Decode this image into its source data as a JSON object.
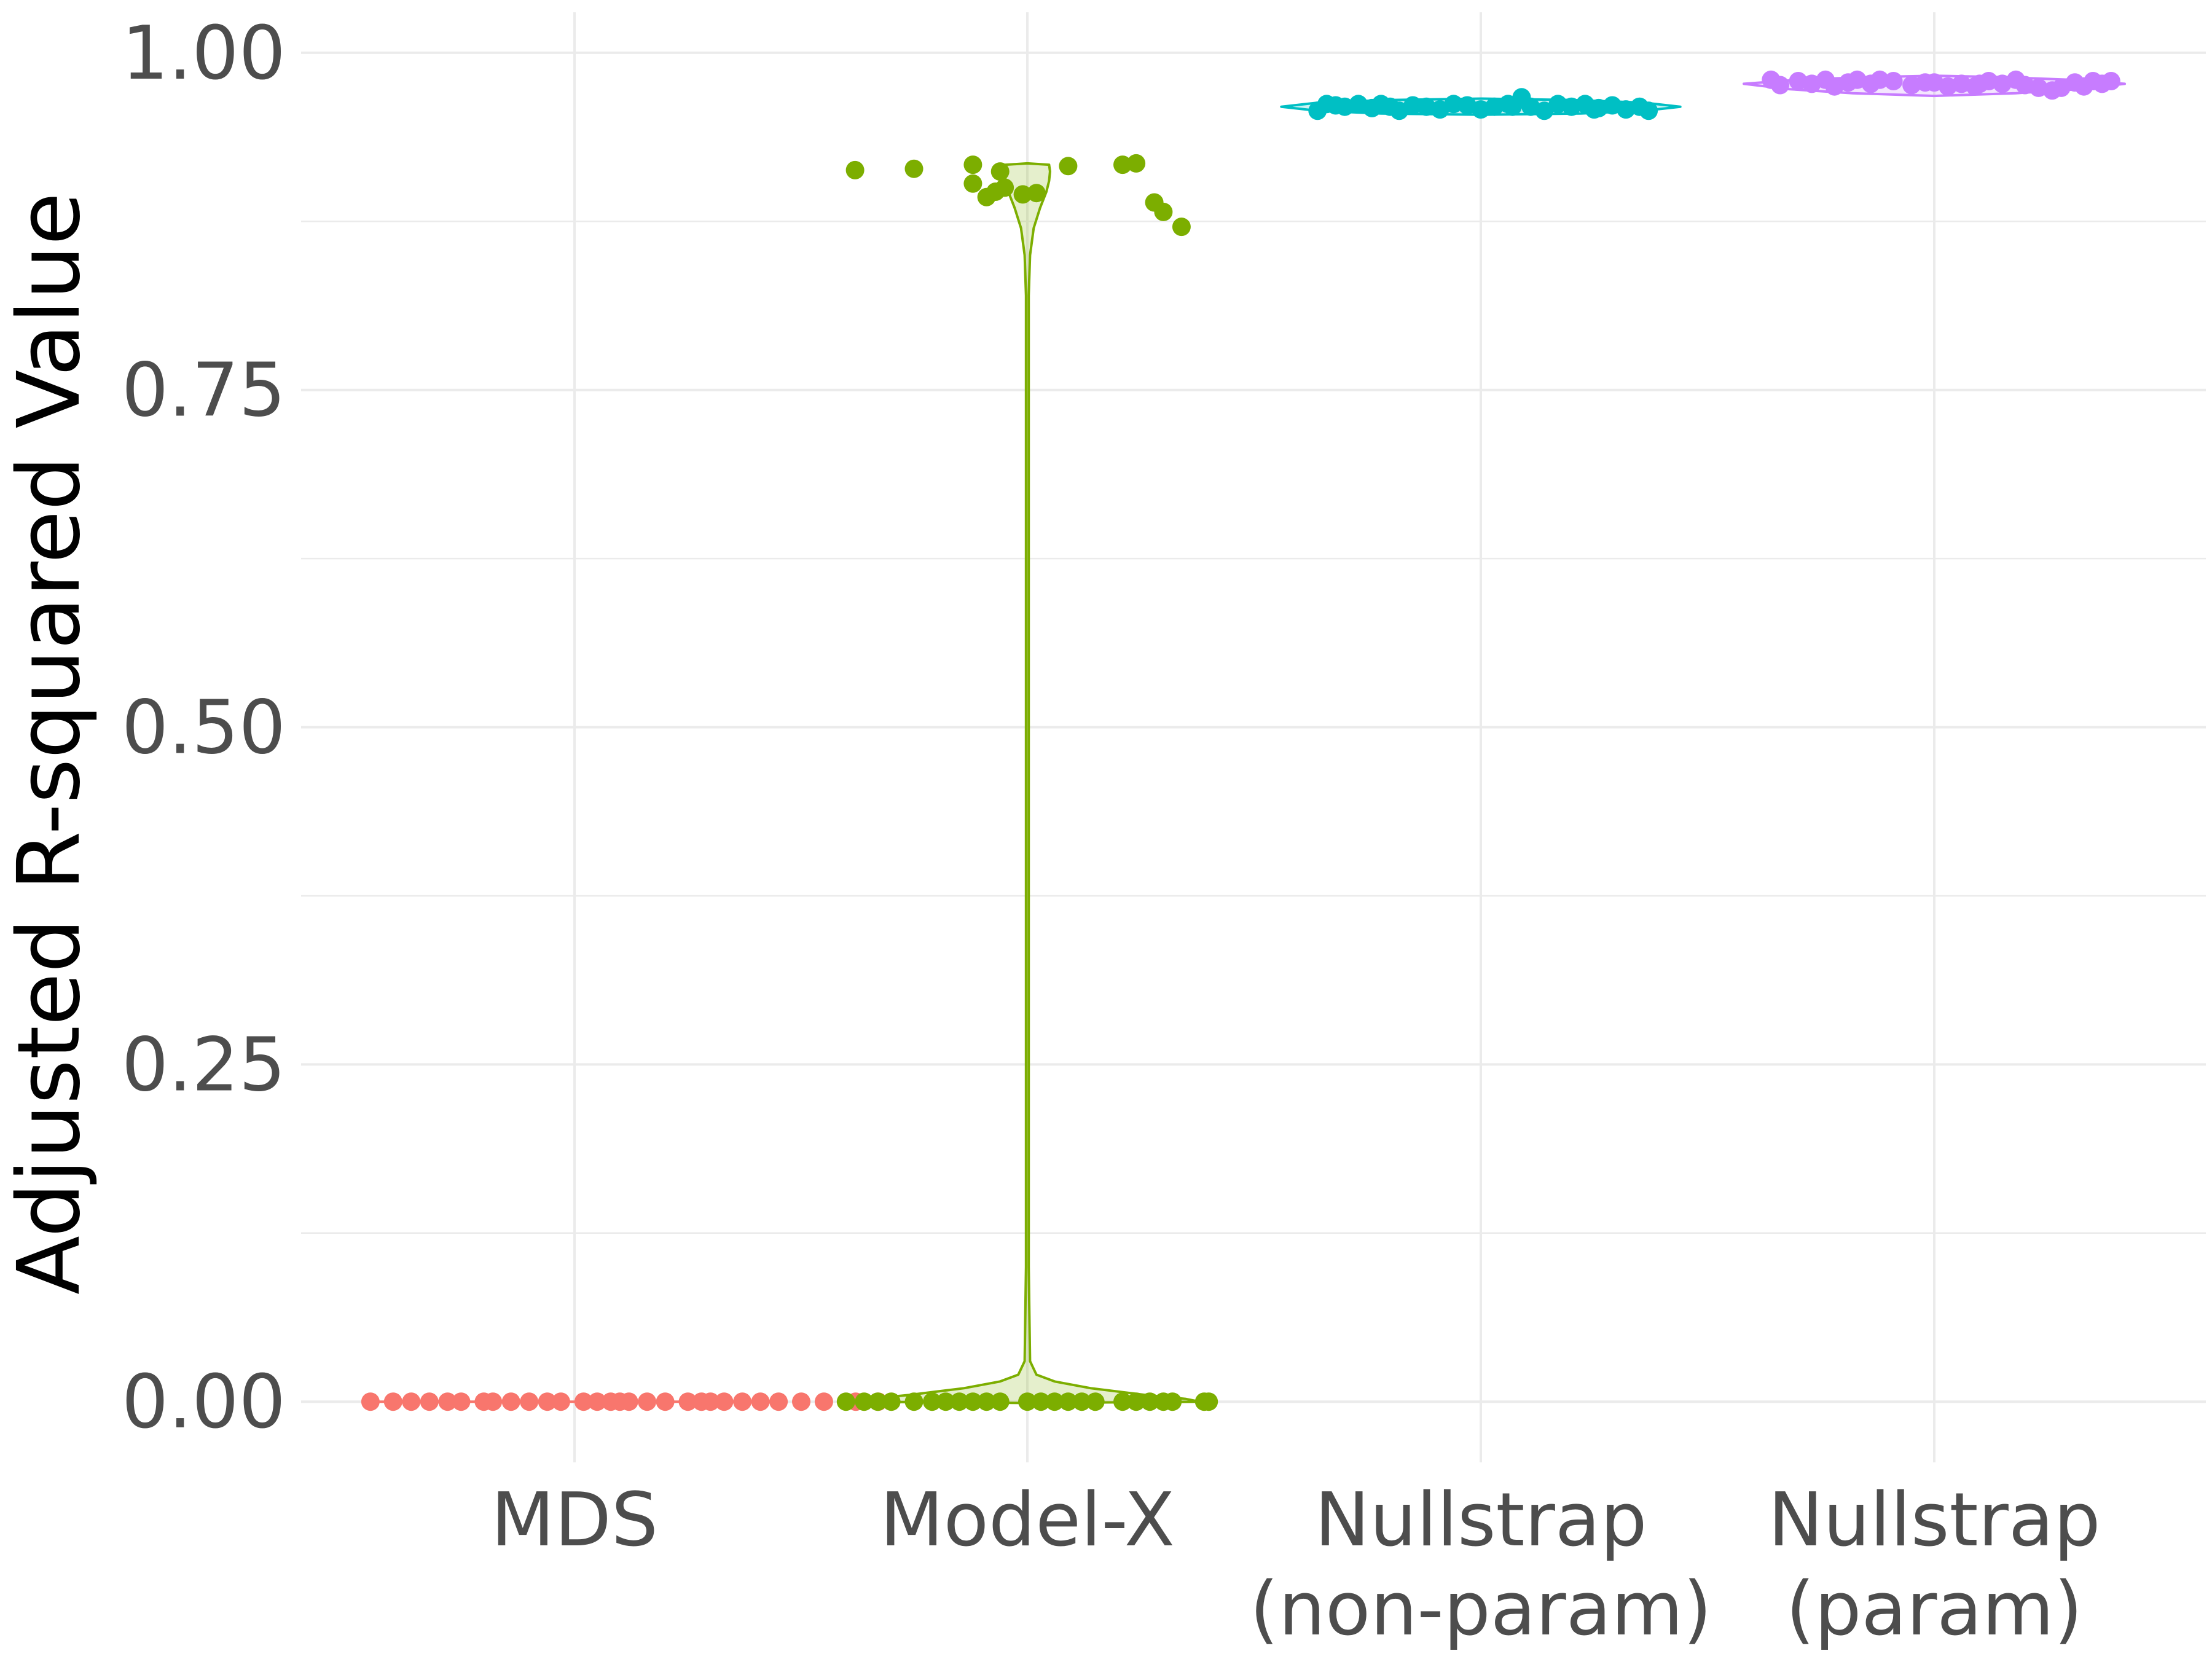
{
  "chart_data": {
    "type": "violin",
    "title": "",
    "xlabel": "",
    "ylabel": "Adjusted R-squared Value",
    "ylim": [
      -0.045,
      1.03
    ],
    "yticks": [
      0,
      0.25,
      0.5,
      0.75,
      1.0
    ],
    "ytick_labels": [
      "0.00",
      "0.25",
      "0.50",
      "0.75",
      "1.00"
    ],
    "grid": true,
    "legend": "none",
    "categories": [
      {
        "lines": [
          "MDS"
        ]
      },
      {
        "lines": [
          "Model-X"
        ]
      },
      {
        "lines": [
          "Nullstrap",
          "(non-param)"
        ]
      },
      {
        "lines": [
          "Nullstrap",
          "(param)"
        ]
      }
    ],
    "series": [
      {
        "color": "#F8766D",
        "points": [
          {
            "x": -0.45,
            "y": 0
          },
          {
            "x": -0.4,
            "y": 0
          },
          {
            "x": -0.36,
            "y": 0
          },
          {
            "x": -0.32,
            "y": 0
          },
          {
            "x": -0.28,
            "y": 0
          },
          {
            "x": -0.25,
            "y": 0
          },
          {
            "x": -0.2,
            "y": 0
          },
          {
            "x": -0.18,
            "y": 0
          },
          {
            "x": -0.1,
            "y": 0
          },
          {
            "x": -0.06,
            "y": 0
          },
          {
            "x": -0.03,
            "y": 0
          },
          {
            "x": 0.02,
            "y": 0
          },
          {
            "x": 0.05,
            "y": 0
          },
          {
            "x": 0.08,
            "y": 0
          },
          {
            "x": 0.12,
            "y": 0
          },
          {
            "x": 0.16,
            "y": 0
          },
          {
            "x": 0.2,
            "y": 0
          },
          {
            "x": 0.25,
            "y": 0
          },
          {
            "x": 0.28,
            "y": 0
          },
          {
            "x": 0.33,
            "y": 0
          },
          {
            "x": 0.37,
            "y": 0
          },
          {
            "x": 0.41,
            "y": 0
          },
          {
            "x": 0.45,
            "y": 0
          },
          {
            "x": 0.5,
            "y": 0
          },
          {
            "x": 0.55,
            "y": 0
          },
          {
            "x": 0.62,
            "y": 0
          },
          {
            "x": 0.67,
            "y": 0
          },
          {
            "x": -0.14,
            "y": 0
          },
          {
            "x": 0.1,
            "y": 0
          },
          {
            "x": 0.3,
            "y": 0
          }
        ],
        "violin": [
          {
            "y": 0,
            "w": 0.45
          }
        ]
      },
      {
        "color": "#7CAE00",
        "points": [
          {
            "x": -0.38,
            "y": 0.913
          },
          {
            "x": -0.25,
            "y": 0.914
          },
          {
            "x": -0.12,
            "y": 0.917
          },
          {
            "x": -0.12,
            "y": 0.903
          },
          {
            "x": -0.09,
            "y": 0.893
          },
          {
            "x": -0.07,
            "y": 0.897
          },
          {
            "x": -0.06,
            "y": 0.912
          },
          {
            "x": -0.05,
            "y": 0.9
          },
          {
            "x": -0.01,
            "y": 0.895
          },
          {
            "x": 0.02,
            "y": 0.896
          },
          {
            "x": 0.09,
            "y": 0.916
          },
          {
            "x": 0.21,
            "y": 0.917
          },
          {
            "x": 0.24,
            "y": 0.918
          },
          {
            "x": 0.28,
            "y": 0.889
          },
          {
            "x": 0.3,
            "y": 0.882
          },
          {
            "x": 0.34,
            "y": 0.871
          },
          {
            "x": -0.4,
            "y": 0
          },
          {
            "x": -0.36,
            "y": 0
          },
          {
            "x": -0.33,
            "y": 0
          },
          {
            "x": -0.3,
            "y": 0
          },
          {
            "x": -0.25,
            "y": 0
          },
          {
            "x": -0.21,
            "y": 0
          },
          {
            "x": -0.18,
            "y": 0
          },
          {
            "x": -0.15,
            "y": 0
          },
          {
            "x": -0.12,
            "y": 0
          },
          {
            "x": -0.09,
            "y": 0
          },
          {
            "x": -0.06,
            "y": 0
          },
          {
            "x": 0.0,
            "y": 0
          },
          {
            "x": 0.03,
            "y": 0
          },
          {
            "x": 0.06,
            "y": 0
          },
          {
            "x": 0.09,
            "y": 0
          },
          {
            "x": 0.12,
            "y": 0
          },
          {
            "x": 0.15,
            "y": 0
          },
          {
            "x": 0.21,
            "y": 0
          },
          {
            "x": 0.24,
            "y": 0
          },
          {
            "x": 0.27,
            "y": 0
          },
          {
            "x": 0.3,
            "y": 0
          },
          {
            "x": 0.32,
            "y": 0
          },
          {
            "x": 0.4,
            "y": 0
          },
          {
            "x": 0.39,
            "y": 0
          }
        ],
        "violin": [
          {
            "y": -0.001,
            "w": 0.0
          },
          {
            "y": 0.0,
            "w": 0.38
          },
          {
            "y": 0.002,
            "w": 0.35
          },
          {
            "y": 0.005,
            "w": 0.26
          },
          {
            "y": 0.01,
            "w": 0.14
          },
          {
            "y": 0.015,
            "w": 0.06
          },
          {
            "y": 0.02,
            "w": 0.02
          },
          {
            "y": 0.03,
            "w": 0.006
          },
          {
            "y": 0.1,
            "w": 0.003
          },
          {
            "y": 0.5,
            "w": 0.003
          },
          {
            "y": 0.82,
            "w": 0.003
          },
          {
            "y": 0.85,
            "w": 0.006
          },
          {
            "y": 0.87,
            "w": 0.014
          },
          {
            "y": 0.885,
            "w": 0.028
          },
          {
            "y": 0.897,
            "w": 0.042
          },
          {
            "y": 0.905,
            "w": 0.048
          },
          {
            "y": 0.912,
            "w": 0.05
          },
          {
            "y": 0.917,
            "w": 0.048
          },
          {
            "y": 0.918,
            "w": 0.0
          }
        ]
      },
      {
        "color": "#00BFC4",
        "points": [
          {
            "x": -0.36,
            "y": 0.957
          },
          {
            "x": -0.34,
            "y": 0.962
          },
          {
            "x": -0.3,
            "y": 0.96
          },
          {
            "x": -0.27,
            "y": 0.962
          },
          {
            "x": -0.24,
            "y": 0.959
          },
          {
            "x": -0.22,
            "y": 0.962
          },
          {
            "x": -0.18,
            "y": 0.957
          },
          {
            "x": -0.15,
            "y": 0.961
          },
          {
            "x": -0.12,
            "y": 0.96
          },
          {
            "x": -0.09,
            "y": 0.958
          },
          {
            "x": -0.06,
            "y": 0.962
          },
          {
            "x": -0.03,
            "y": 0.961
          },
          {
            "x": 0.0,
            "y": 0.958
          },
          {
            "x": 0.03,
            "y": 0.96
          },
          {
            "x": 0.06,
            "y": 0.962
          },
          {
            "x": 0.09,
            "y": 0.967
          },
          {
            "x": 0.11,
            "y": 0.96
          },
          {
            "x": 0.14,
            "y": 0.957
          },
          {
            "x": 0.17,
            "y": 0.962
          },
          {
            "x": 0.2,
            "y": 0.96
          },
          {
            "x": 0.23,
            "y": 0.962
          },
          {
            "x": 0.26,
            "y": 0.959
          },
          {
            "x": 0.29,
            "y": 0.961
          },
          {
            "x": 0.32,
            "y": 0.958
          },
          {
            "x": 0.35,
            "y": 0.96
          },
          {
            "x": 0.37,
            "y": 0.957
          },
          {
            "x": -0.32,
            "y": 0.961
          },
          {
            "x": 0.07,
            "y": 0.96
          },
          {
            "x": -0.2,
            "y": 0.96
          },
          {
            "x": 0.25,
            "y": 0.958
          }
        ],
        "violin": [
          {
            "y": 0.954,
            "w": 0.0
          },
          {
            "y": 0.955,
            "w": 0.22
          },
          {
            "y": 0.957,
            "w": 0.36
          },
          {
            "y": 0.96,
            "w": 0.44
          },
          {
            "y": 0.963,
            "w": 0.36
          },
          {
            "y": 0.965,
            "w": 0.2
          },
          {
            "y": 0.966,
            "w": 0.0
          }
        ]
      },
      {
        "color": "#C77CFF",
        "points": [
          {
            "x": -0.36,
            "y": 0.98
          },
          {
            "x": -0.34,
            "y": 0.976
          },
          {
            "x": -0.3,
            "y": 0.979
          },
          {
            "x": -0.27,
            "y": 0.977
          },
          {
            "x": -0.24,
            "y": 0.98
          },
          {
            "x": -0.22,
            "y": 0.975
          },
          {
            "x": -0.19,
            "y": 0.978
          },
          {
            "x": -0.17,
            "y": 0.98
          },
          {
            "x": -0.14,
            "y": 0.977
          },
          {
            "x": -0.12,
            "y": 0.98
          },
          {
            "x": -0.09,
            "y": 0.979
          },
          {
            "x": -0.05,
            "y": 0.976
          },
          {
            "x": 0.03,
            "y": 0.975
          },
          {
            "x": 0.06,
            "y": 0.977
          },
          {
            "x": 0.09,
            "y": 0.975
          },
          {
            "x": 0.12,
            "y": 0.979
          },
          {
            "x": 0.15,
            "y": 0.977
          },
          {
            "x": 0.18,
            "y": 0.98
          },
          {
            "x": 0.2,
            "y": 0.976
          },
          {
            "x": 0.23,
            "y": 0.974
          },
          {
            "x": 0.26,
            "y": 0.972
          },
          {
            "x": 0.28,
            "y": 0.974
          },
          {
            "x": 0.31,
            "y": 0.978
          },
          {
            "x": 0.33,
            "y": 0.975
          },
          {
            "x": 0.35,
            "y": 0.979
          },
          {
            "x": 0.37,
            "y": 0.977
          },
          {
            "x": 0.39,
            "y": 0.979
          },
          {
            "x": -0.02,
            "y": 0.978
          },
          {
            "x": 0.0,
            "y": 0.978
          },
          {
            "x": 0.1,
            "y": 0.977
          }
        ],
        "violin": [
          {
            "y": 0.968,
            "w": 0.0
          },
          {
            "y": 0.97,
            "w": 0.18
          },
          {
            "y": 0.973,
            "w": 0.32
          },
          {
            "y": 0.977,
            "w": 0.42
          },
          {
            "y": 0.98,
            "w": 0.3
          },
          {
            "y": 0.982,
            "w": 0.14
          },
          {
            "y": 0.983,
            "w": 0.0
          }
        ]
      }
    ]
  }
}
